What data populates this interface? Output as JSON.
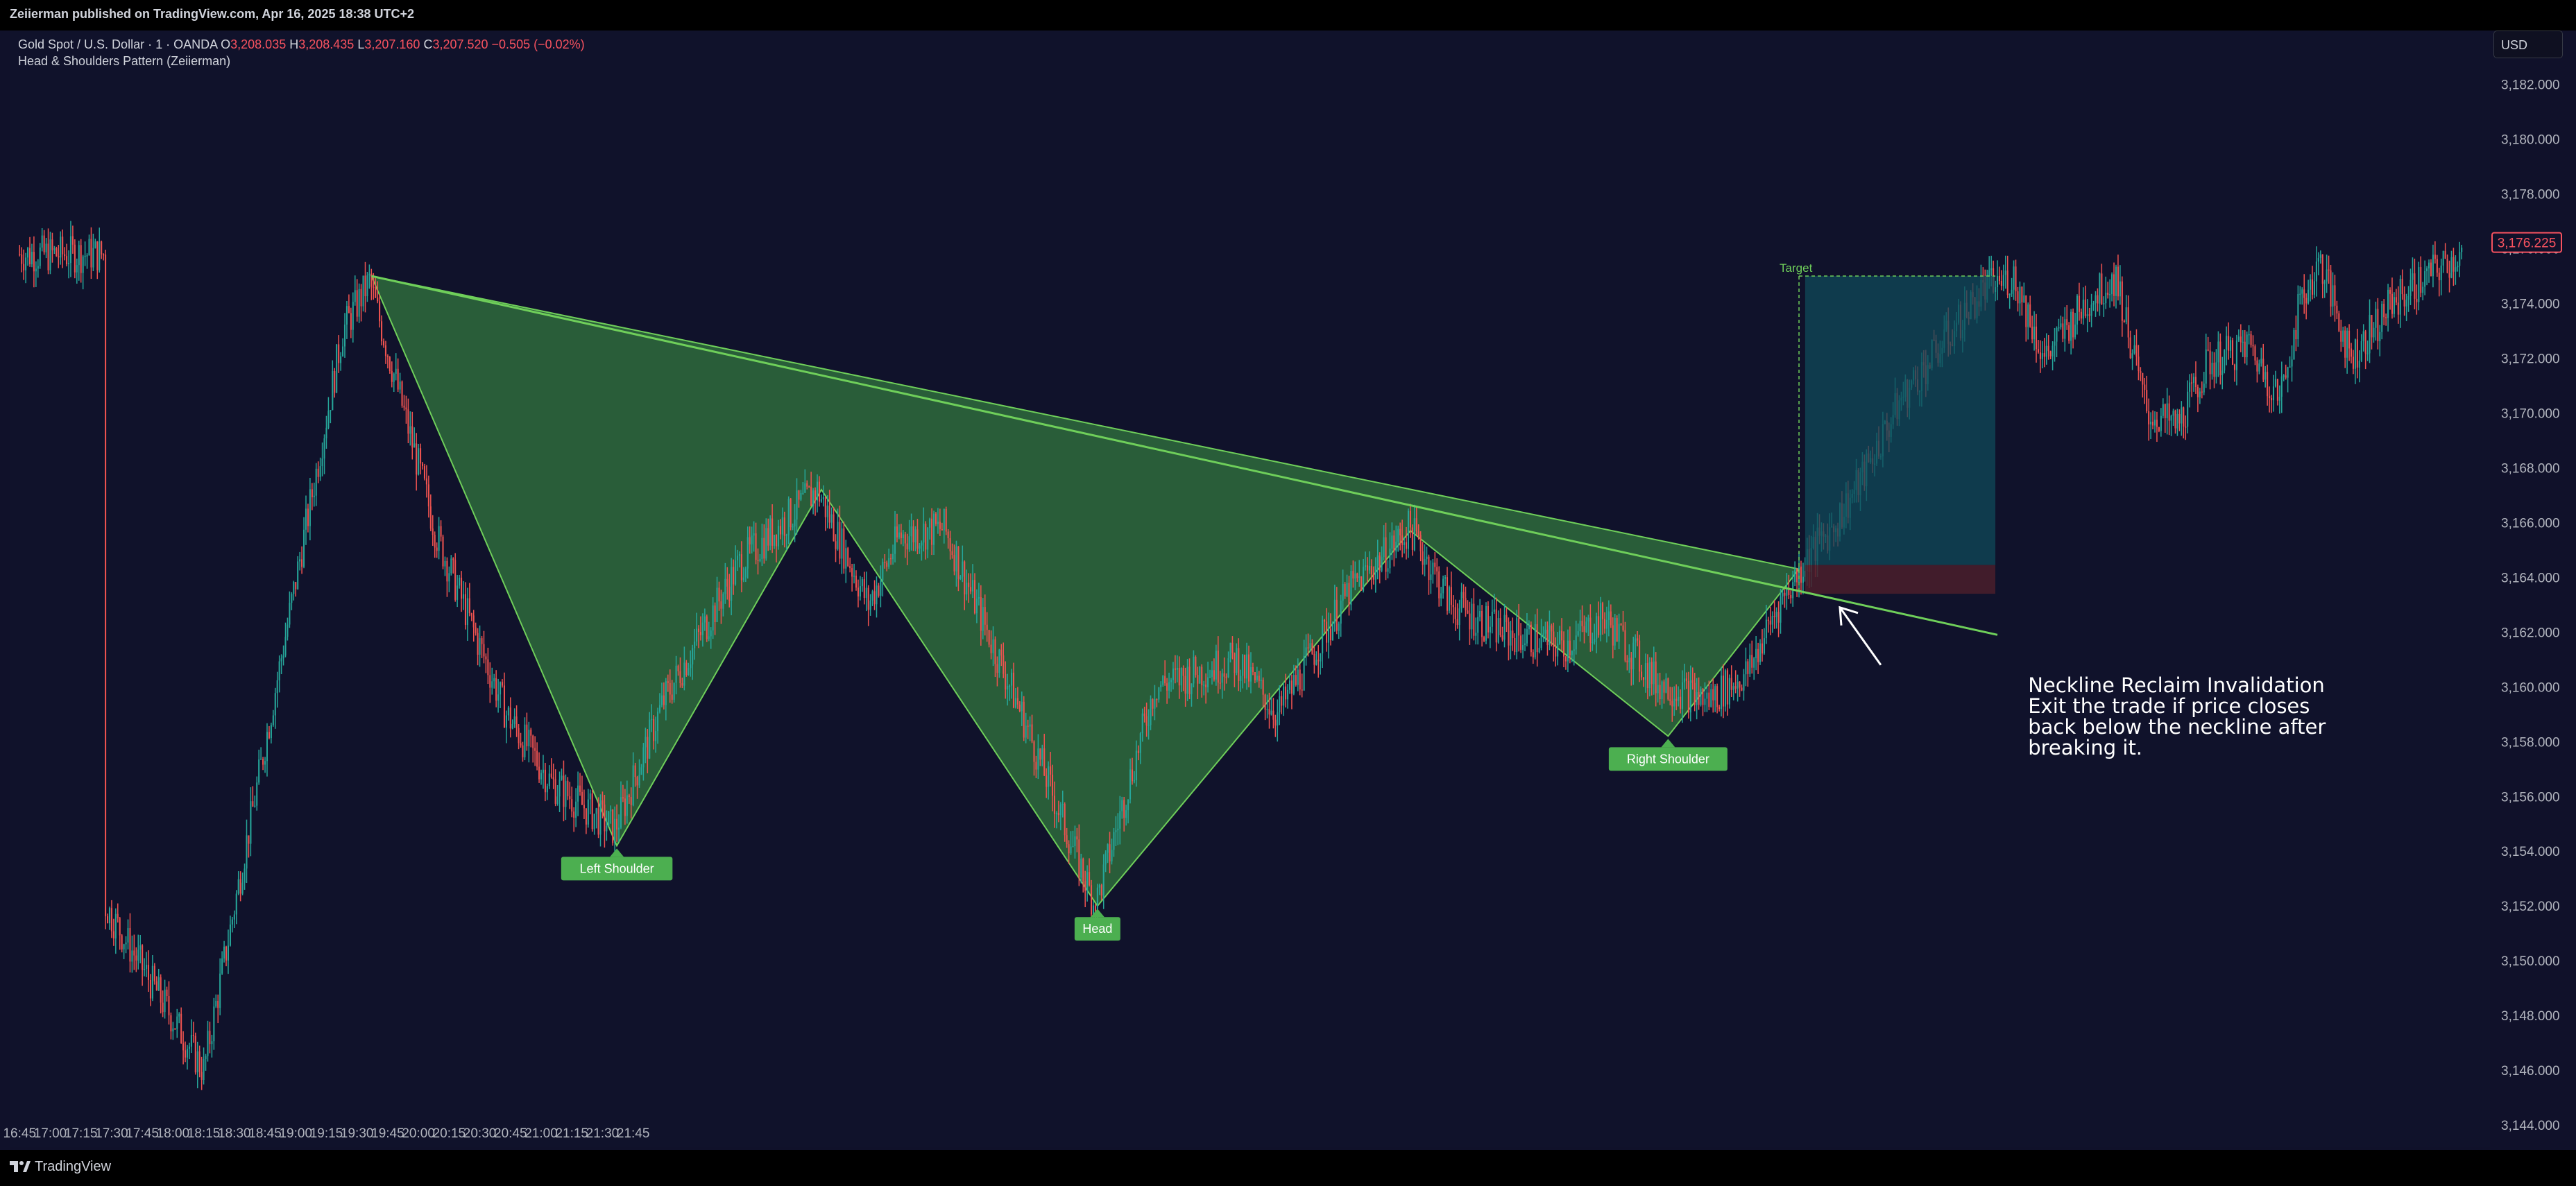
{
  "header": {
    "published": "Zeiierman published on TradingView.com, Apr 16, 2025 18:38 UTC+2"
  },
  "legend": {
    "symbol": "Gold Spot / U.S. Dollar · 1 · OANDA",
    "o_label": "O",
    "o_value": "3,208.035",
    "h_label": "H",
    "h_value": "3,208.435",
    "l_label": "L",
    "l_value": "3,207.160",
    "c_label": "C",
    "c_value": "3,207.520",
    "change": "−0.505 (−0.02%)",
    "indicator": "Head & Shoulders Pattern (Zeiierman)"
  },
  "currency": "USD",
  "footer": {
    "brand": "TradingView"
  },
  "colors": {
    "background": "#10112a",
    "up": "#26a69a",
    "down": "#ef5350",
    "pattern_fill": "#2e6b3c",
    "pattern_line": "#6fcf5a",
    "label_bg": "#4caf50",
    "target_fill": "#0f4a5a",
    "stop_fill": "#4a1e2c",
    "price_tag": "#f7525f"
  },
  "chart_data": {
    "type": "candlestick",
    "x_ticks": [
      "16:45",
      "17:00",
      "17:15",
      "17:30",
      "17:45",
      "18:00",
      "18:15",
      "18:30",
      "18:45",
      "19:00",
      "19:15",
      "19:30",
      "19:45",
      "20:00",
      "20:15",
      "20:30",
      "20:45",
      "21:00",
      "21:15",
      "21:30",
      "21:45"
    ],
    "y_ticks": [
      "3,144.000",
      "3,146.000",
      "3,148.000",
      "3,150.000",
      "3,152.000",
      "3,154.000",
      "3,156.000",
      "3,158.000",
      "3,160.000",
      "3,162.000",
      "3,164.000",
      "3,166.000",
      "3,168.000",
      "3,170.000",
      "3,172.000",
      "3,174.000",
      "3,176.000",
      "3,178.000",
      "3,180.000",
      "3,182.000"
    ],
    "ylim": [
      3143.8,
      3182.8
    ],
    "xlim_minutes": [
      -4.5,
      1198
    ],
    "last_price": "3,176.225",
    "last_price_value": 3176.225,
    "key_points": [
      {
        "t": 42,
        "p": 3152.0
      },
      {
        "t": 90,
        "p": 3146.0
      },
      {
        "t": 158,
        "p": 3173.0
      },
      {
        "t": 171,
        "p": 3174.8
      },
      {
        "t": 204,
        "p": 3165.5
      },
      {
        "t": 238,
        "p": 3159.0
      },
      {
        "t": 260,
        "p": 3156.5
      },
      {
        "t": 291,
        "p": 3154.8
      },
      {
        "t": 315,
        "p": 3159.5
      },
      {
        "t": 352,
        "p": 3164.5
      },
      {
        "t": 390,
        "p": 3167.2
      },
      {
        "t": 415,
        "p": 3163.0
      },
      {
        "t": 430,
        "p": 3165.5
      },
      {
        "t": 452,
        "p": 3165.8
      },
      {
        "t": 490,
        "p": 3159.0
      },
      {
        "t": 526,
        "p": 3152.0
      },
      {
        "t": 555,
        "p": 3160.0
      },
      {
        "t": 595,
        "p": 3161.0
      },
      {
        "t": 615,
        "p": 3159.0
      },
      {
        "t": 650,
        "p": 3163.5
      },
      {
        "t": 680,
        "p": 3165.8
      },
      {
        "t": 700,
        "p": 3163.0
      },
      {
        "t": 725,
        "p": 3162.0
      },
      {
        "t": 755,
        "p": 3161.5
      },
      {
        "t": 775,
        "p": 3162.5
      },
      {
        "t": 800,
        "p": 3160.2
      },
      {
        "t": 825,
        "p": 3159.5
      },
      {
        "t": 845,
        "p": 3160.5
      },
      {
        "t": 860,
        "p": 3163.0
      },
      {
        "t": 875,
        "p": 3164.8
      },
      {
        "t": 888,
        "p": 3166.0
      },
      {
        "t": 900,
        "p": 3167.5
      },
      {
        "t": 920,
        "p": 3170.5
      },
      {
        "t": 940,
        "p": 3172.5
      },
      {
        "t": 960,
        "p": 3174.5
      },
      {
        "t": 975,
        "p": 3175.0
      },
      {
        "t": 990,
        "p": 3172.0
      },
      {
        "t": 1010,
        "p": 3174.0
      },
      {
        "t": 1025,
        "p": 3175.0
      },
      {
        "t": 1040,
        "p": 3170.0
      },
      {
        "t": 1055,
        "p": 3169.5
      },
      {
        "t": 1070,
        "p": 3171.8
      },
      {
        "t": 1090,
        "p": 3172.5
      },
      {
        "t": 1105,
        "p": 3170.5
      },
      {
        "t": 1115,
        "p": 3174.0
      },
      {
        "t": 1125,
        "p": 3175.5
      },
      {
        "t": 1140,
        "p": 3172.0
      },
      {
        "t": 1160,
        "p": 3174.0
      },
      {
        "t": 1178,
        "p": 3175.0
      },
      {
        "t": 1194,
        "p": 3175.8
      }
    ],
    "pattern": {
      "neckline_start": {
        "t": 172,
        "p": 3175.0
      },
      "neckline_end": {
        "t": 870,
        "p": 3164.3
      },
      "neckline_extend_to": {
        "t": 967,
        "p": 3161.9
      },
      "vertices": [
        {
          "t": 172,
          "p": 3175.0
        },
        {
          "t": 292,
          "p": 3154.2
        },
        {
          "t": 392,
          "p": 3167.2
        },
        {
          "t": 527,
          "p": 3152.0
        },
        {
          "t": 680,
          "p": 3165.7
        },
        {
          "t": 806,
          "p": 3158.2
        },
        {
          "t": 870,
          "p": 3164.3
        }
      ],
      "labels": [
        {
          "text": "Left Shoulder",
          "t": 292,
          "p": 3154.2
        },
        {
          "text": "Head",
          "t": 527,
          "p": 3152.0
        },
        {
          "text": "Right Shoulder",
          "t": 806,
          "p": 3158.2
        }
      ],
      "target_label": "Target",
      "target_box": {
        "t0": 873,
        "t1": 966,
        "p0": 3164.45,
        "p1": 3175.0
      },
      "stop_box": {
        "t0": 873,
        "t1": 966,
        "p0": 3163.4,
        "p1": 3164.45
      },
      "entry_t": 870
    },
    "annotation": {
      "lines": [
        "Neckline Reclaim Invalidation",
        "Exit the trade if price closes",
        "back below the neckline after",
        "breaking it."
      ],
      "anchor": {
        "t": 982,
        "p": 3159.8
      },
      "arrow_from": {
        "t": 910,
        "p": 3160.8
      },
      "arrow_to": {
        "t": 890,
        "p": 3162.9
      }
    }
  }
}
